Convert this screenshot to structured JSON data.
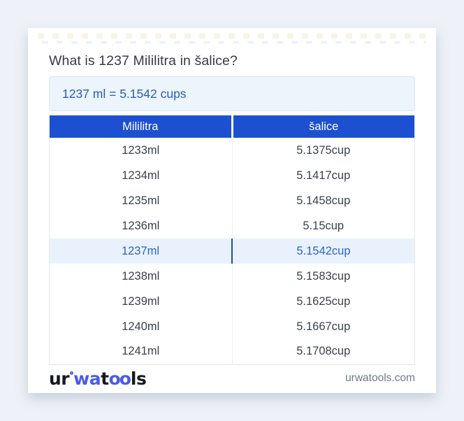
{
  "header": {
    "title": "What is 1237 Mililitra in šalice?",
    "result": "1237 ml = 5.1542 cups"
  },
  "table": {
    "columns": [
      "Mililitra",
      "šalice"
    ],
    "highlight_index": 4,
    "rows": [
      {
        "ml": "1233ml",
        "cup": "5.1375cup"
      },
      {
        "ml": "1234ml",
        "cup": "5.1417cup"
      },
      {
        "ml": "1235ml",
        "cup": "5.1458cup"
      },
      {
        "ml": "1236ml",
        "cup": "5.15cup"
      },
      {
        "ml": "1237ml",
        "cup": "5.1542cup"
      },
      {
        "ml": "1238ml",
        "cup": "5.1583cup"
      },
      {
        "ml": "1239ml",
        "cup": "5.1625cup"
      },
      {
        "ml": "1240ml",
        "cup": "5.1667cup"
      },
      {
        "ml": "1241ml",
        "cup": "5.1708cup"
      }
    ]
  },
  "footer": {
    "logo_segments": {
      "seg1": "ur",
      "seg2": "wa",
      "seg3": "t",
      "seg4": "oo",
      "seg5": "ls"
    },
    "domain": "urwatools.com"
  },
  "colors": {
    "page_bg": "#eef1f7",
    "header_blue": "#1d4fd1",
    "result_bg": "#ecf4fc",
    "result_text": "#2b5cb7",
    "highlight_bg": "#e9f2fc",
    "highlight_text": "#2c63c9",
    "highlight_divider": "#1f5493",
    "logo_blue": "#4a5ce4",
    "domain_text": "#6e7a8a"
  }
}
